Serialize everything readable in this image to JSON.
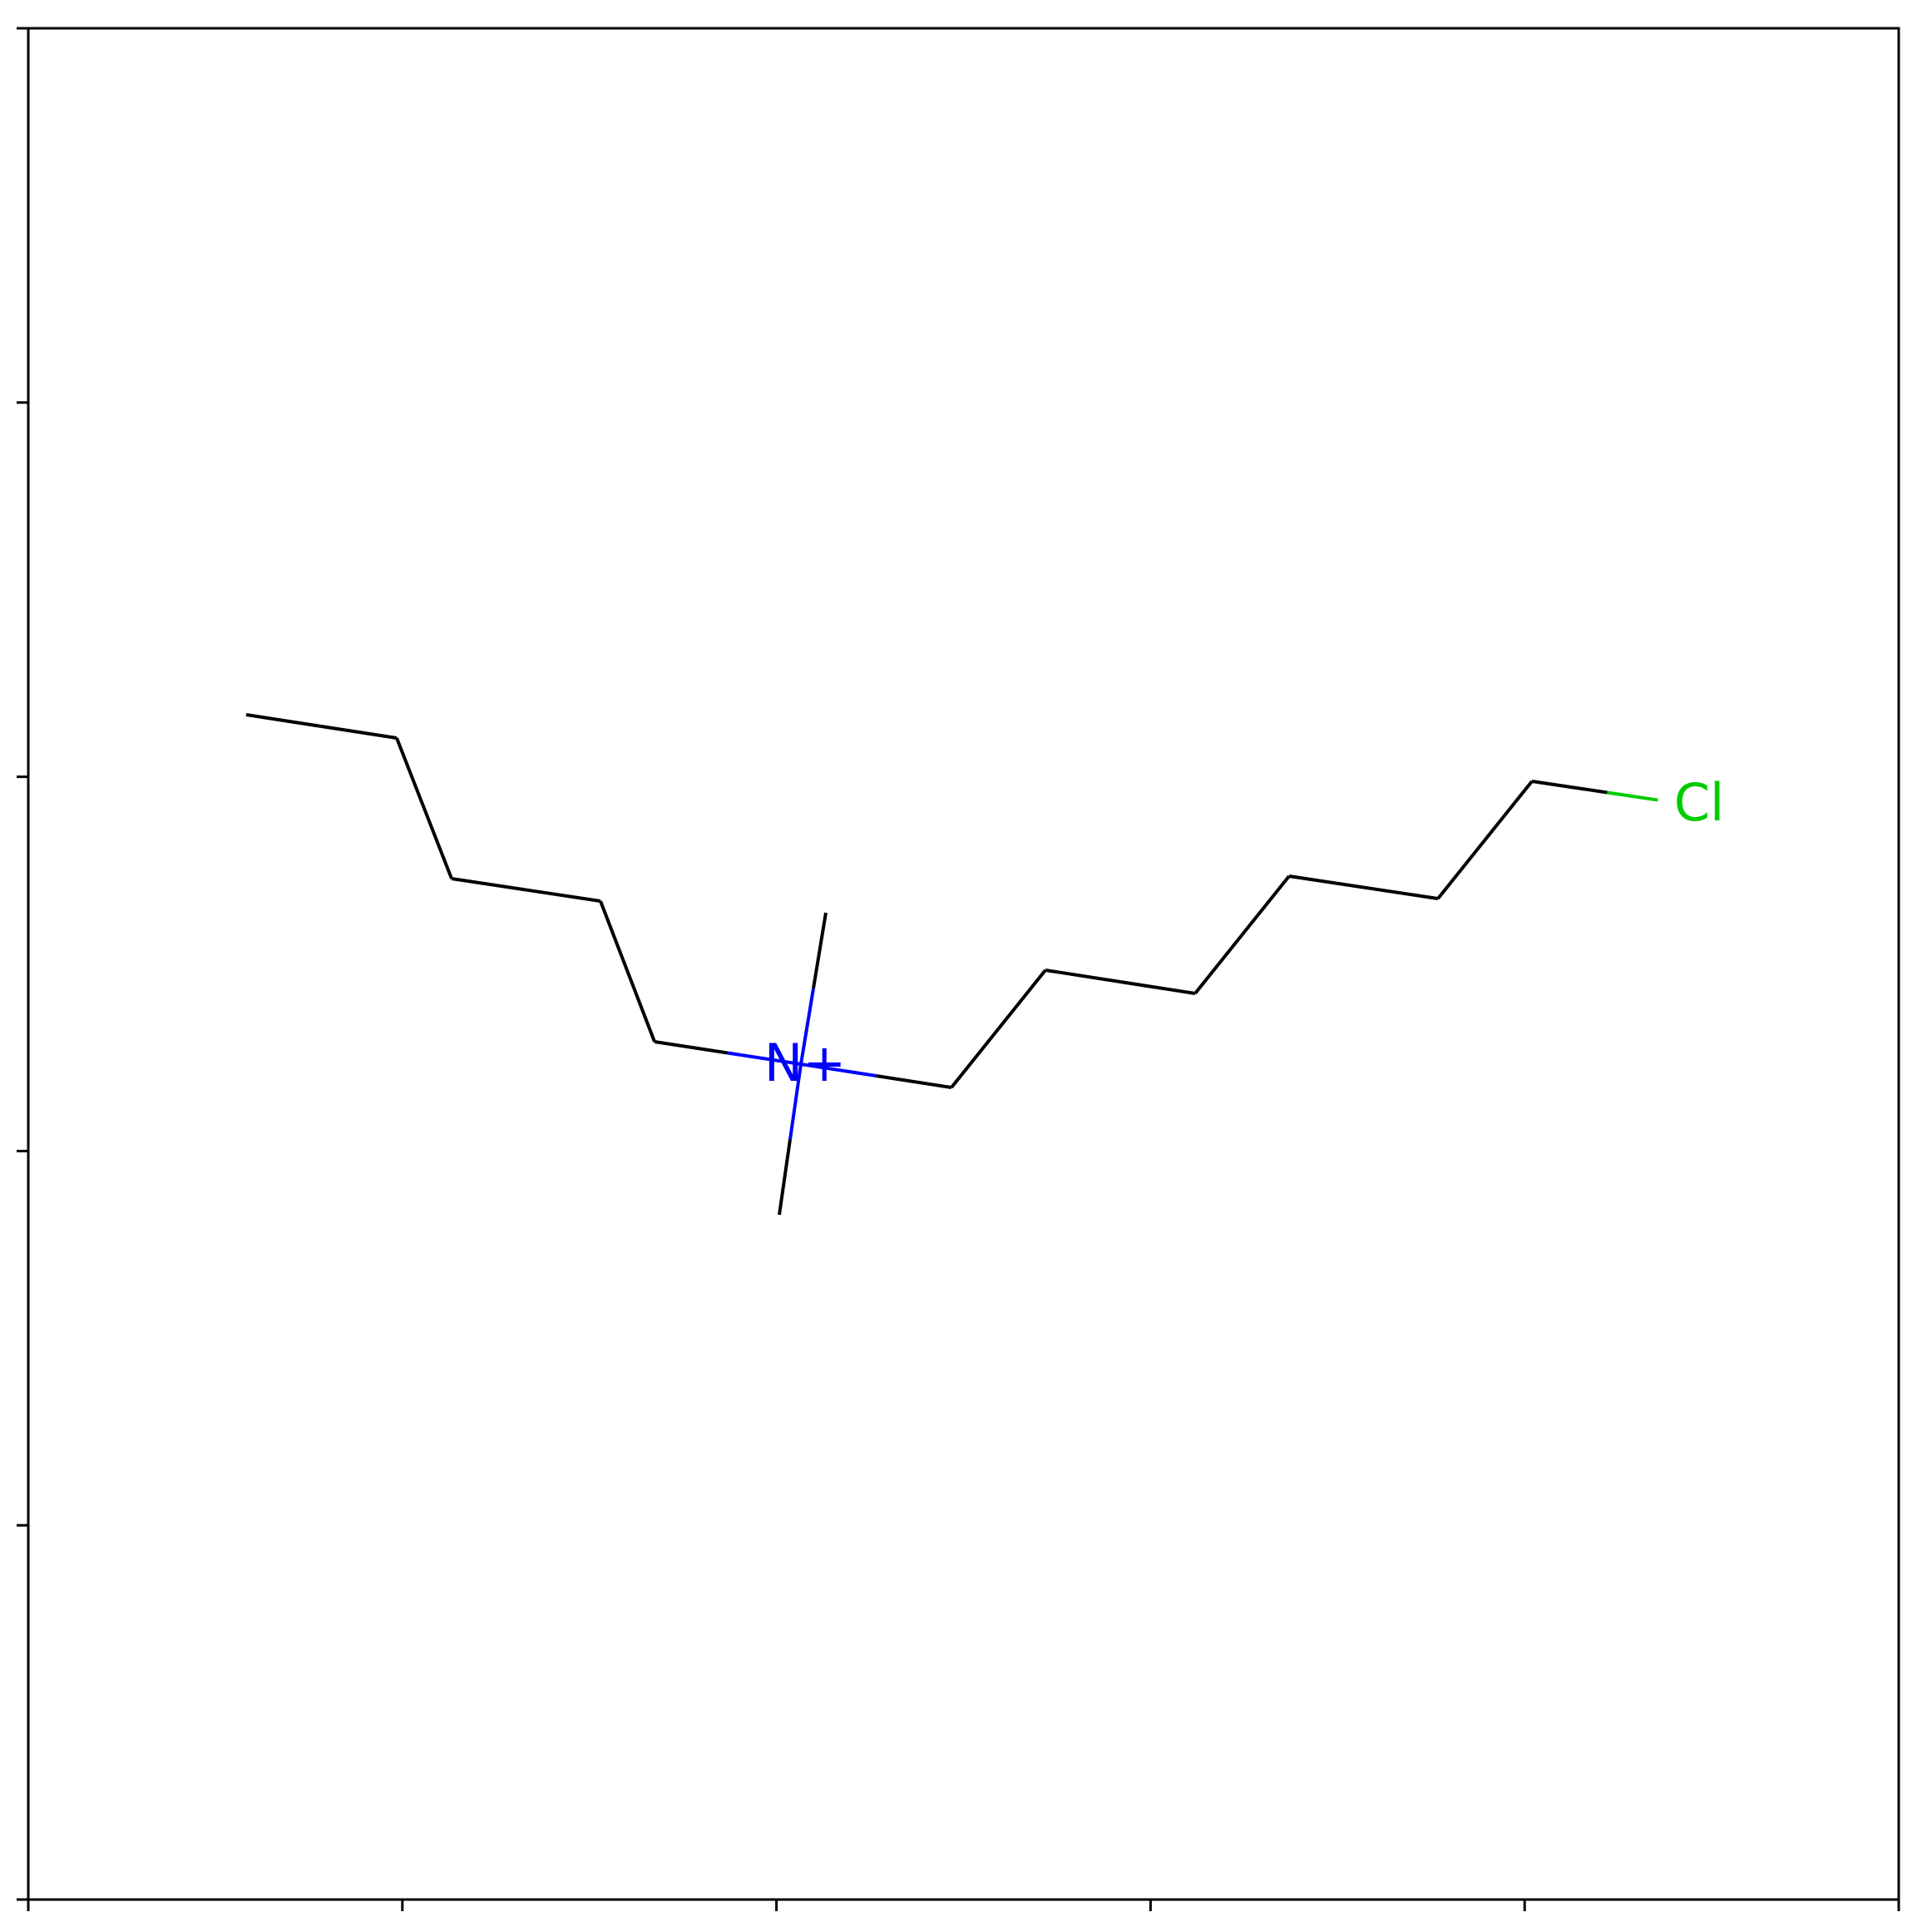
{
  "molecule": {
    "atoms": [
      {
        "id": "c1",
        "element": "C",
        "label": ""
      },
      {
        "id": "c2",
        "element": "C",
        "label": ""
      },
      {
        "id": "c3",
        "element": "C",
        "label": ""
      },
      {
        "id": "c4",
        "element": "C",
        "label": ""
      },
      {
        "id": "c5",
        "element": "C",
        "label": ""
      },
      {
        "id": "n1",
        "element": "N",
        "label": "N+"
      },
      {
        "id": "me1",
        "element": "C",
        "label": ""
      },
      {
        "id": "me2",
        "element": "C",
        "label": ""
      },
      {
        "id": "c6",
        "element": "C",
        "label": ""
      },
      {
        "id": "c7",
        "element": "C",
        "label": ""
      },
      {
        "id": "c8",
        "element": "C",
        "label": ""
      },
      {
        "id": "c9",
        "element": "C",
        "label": ""
      },
      {
        "id": "c10",
        "element": "C",
        "label": ""
      },
      {
        "id": "c11",
        "element": "C",
        "label": ""
      },
      {
        "id": "cl1",
        "element": "Cl",
        "label": "Cl"
      }
    ],
    "bonds": [
      [
        "c1",
        "c2"
      ],
      [
        "c2",
        "c3"
      ],
      [
        "c3",
        "c4"
      ],
      [
        "c4",
        "c5"
      ],
      [
        "c5",
        "n1"
      ],
      [
        "n1",
        "me1"
      ],
      [
        "n1",
        "me2"
      ],
      [
        "n1",
        "c6"
      ],
      [
        "c6",
        "c7"
      ],
      [
        "c7",
        "c8"
      ],
      [
        "c8",
        "c9"
      ],
      [
        "c9",
        "c10"
      ],
      [
        "c10",
        "c11"
      ],
      [
        "c11",
        "cl1"
      ]
    ]
  },
  "colors": {
    "carbon": "#000000",
    "nitrogen": "#0000ff",
    "chlorine": "#00cc00",
    "frame": "#000000",
    "background": "#ffffff"
  }
}
